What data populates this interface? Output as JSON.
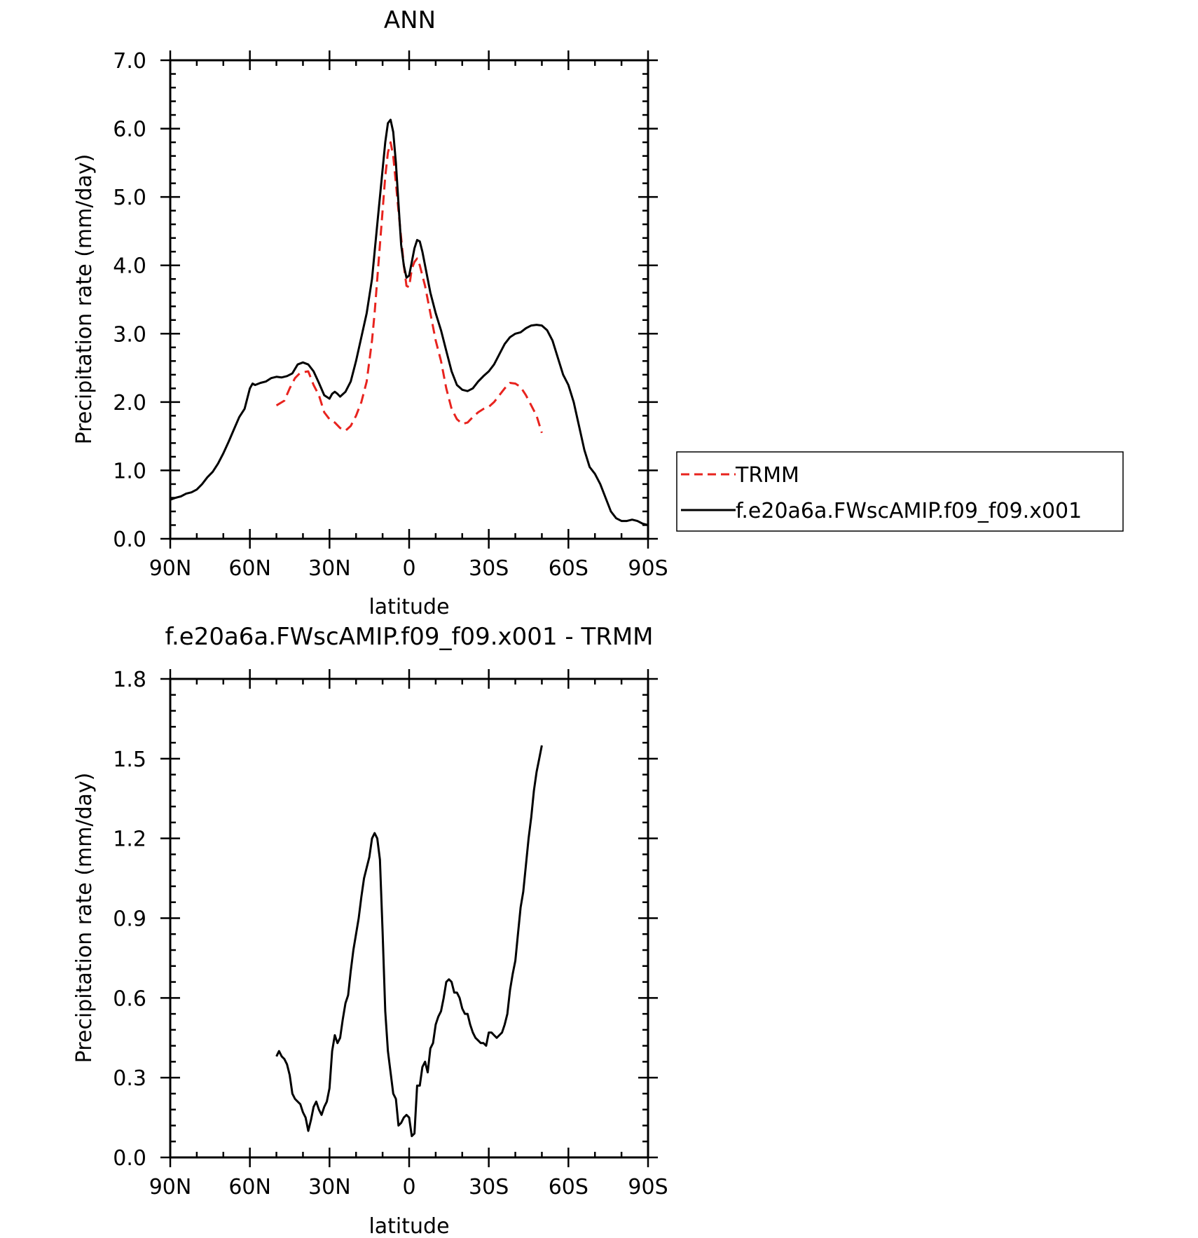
{
  "colors": {
    "trmm": "#e8231e",
    "model": "#000000"
  },
  "chart_data": [
    {
      "type": "line",
      "title": "ANN",
      "xlabel": "latitude",
      "ylabel": "Precipitation rate (mm/day)",
      "xlim": [
        90,
        -90
      ],
      "ylim": [
        0,
        7
      ],
      "x_ticks": [
        90,
        60,
        30,
        0,
        -30,
        -60,
        -90
      ],
      "x_tick_labels": [
        "90N",
        "60N",
        "30N",
        "0",
        "30S",
        "60S",
        "90S"
      ],
      "y_ticks": [
        0,
        1,
        2,
        3,
        4,
        5,
        6,
        7
      ],
      "y_tick_labels": [
        "0.0",
        "1.0",
        "2.0",
        "3.0",
        "4.0",
        "5.0",
        "6.0",
        "7.0"
      ],
      "legend_position": "right",
      "series": [
        {
          "name": "TRMM",
          "style": "dashed",
          "color": "#e8231e",
          "x": [
            50,
            47,
            45,
            43,
            41,
            38,
            36,
            34,
            32,
            30,
            28,
            26,
            24,
            22,
            20,
            18,
            16,
            14,
            13,
            12,
            11,
            10,
            9,
            8,
            7,
            6,
            5,
            4,
            3,
            2,
            1,
            0,
            -1,
            -2,
            -3,
            -4,
            -5,
            -6,
            -8,
            -10,
            -12,
            -14,
            -16,
            -18,
            -20,
            -22,
            -24,
            -26,
            -28,
            -30,
            -32,
            -34,
            -36,
            -38,
            -40,
            -42,
            -44,
            -46,
            -48,
            -50
          ],
          "values": [
            1.95,
            2.02,
            2.2,
            2.35,
            2.43,
            2.45,
            2.25,
            2.1,
            1.85,
            1.75,
            1.7,
            1.62,
            1.58,
            1.65,
            1.8,
            2.0,
            2.3,
            2.9,
            3.3,
            3.8,
            4.3,
            4.8,
            5.3,
            5.65,
            5.8,
            5.6,
            5.2,
            4.8,
            4.4,
            4.0,
            3.7,
            3.68,
            3.95,
            4.05,
            4.1,
            4.0,
            3.85,
            3.7,
            3.3,
            2.9,
            2.6,
            2.2,
            1.9,
            1.75,
            1.68,
            1.7,
            1.78,
            1.85,
            1.9,
            1.93,
            2.0,
            2.1,
            2.2,
            2.28,
            2.27,
            2.22,
            2.1,
            1.95,
            1.8,
            1.55
          ]
        },
        {
          "name": "f.e20a6a.FWscAMIP.f09_f09.x001",
          "style": "solid",
          "color": "#000000",
          "x": [
            90,
            88,
            86,
            84,
            82,
            80,
            78,
            76,
            74,
            72,
            70,
            68,
            66,
            64,
            62,
            60,
            59,
            58,
            56,
            54,
            52,
            50,
            48,
            46,
            44,
            42,
            40,
            38,
            36,
            34,
            32,
            30,
            29,
            28,
            27,
            26,
            24,
            22,
            20,
            18,
            16,
            14,
            12,
            10,
            9,
            8,
            7,
            6,
            5,
            4,
            3,
            2,
            1,
            0,
            -1,
            -2,
            -3,
            -4,
            -5,
            -6,
            -8,
            -10,
            -12,
            -14,
            -16,
            -18,
            -20,
            -22,
            -24,
            -26,
            -28,
            -30,
            -32,
            -34,
            -36,
            -38,
            -40,
            -42,
            -44,
            -46,
            -48,
            -50,
            -52,
            -54,
            -56,
            -58,
            -60,
            -62,
            -64,
            -66,
            -68,
            -70,
            -72,
            -74,
            -76,
            -78,
            -80,
            -82,
            -84,
            -86,
            -88,
            -90
          ],
          "values": [
            0.57,
            0.6,
            0.62,
            0.66,
            0.68,
            0.72,
            0.8,
            0.9,
            0.98,
            1.1,
            1.25,
            1.42,
            1.6,
            1.78,
            1.9,
            2.2,
            2.27,
            2.25,
            2.28,
            2.3,
            2.35,
            2.37,
            2.36,
            2.38,
            2.42,
            2.55,
            2.58,
            2.55,
            2.45,
            2.28,
            2.1,
            2.05,
            2.12,
            2.15,
            2.12,
            2.08,
            2.15,
            2.3,
            2.6,
            2.95,
            3.3,
            3.8,
            4.6,
            5.4,
            5.8,
            6.08,
            6.13,
            5.95,
            5.5,
            4.9,
            4.3,
            4.0,
            3.82,
            3.85,
            4.05,
            4.25,
            4.37,
            4.35,
            4.2,
            4.0,
            3.6,
            3.3,
            3.05,
            2.75,
            2.45,
            2.25,
            2.18,
            2.16,
            2.2,
            2.3,
            2.38,
            2.45,
            2.55,
            2.7,
            2.85,
            2.95,
            3.0,
            3.02,
            3.08,
            3.12,
            3.13,
            3.12,
            3.05,
            2.9,
            2.65,
            2.4,
            2.25,
            2.0,
            1.65,
            1.3,
            1.05,
            0.95,
            0.8,
            0.6,
            0.4,
            0.3,
            0.26,
            0.26,
            0.28,
            0.26,
            0.22,
            0.2
          ]
        }
      ]
    },
    {
      "type": "line",
      "title": "f.e20a6a.FWscAMIP.f09_f09.x001 - TRMM",
      "xlabel": "latitude",
      "ylabel": "Precipitation rate (mm/day)",
      "xlim": [
        90,
        -90
      ],
      "ylim": [
        0,
        1.8
      ],
      "x_ticks": [
        90,
        60,
        30,
        0,
        -30,
        -60,
        -90
      ],
      "x_tick_labels": [
        "90N",
        "60N",
        "30N",
        "0",
        "30S",
        "60S",
        "90S"
      ],
      "y_ticks": [
        0,
        0.3,
        0.6,
        0.9,
        1.2,
        1.5,
        1.8
      ],
      "y_tick_labels": [
        "0.0",
        "0.3",
        "0.6",
        "0.9",
        "1.2",
        "1.5",
        "1.8"
      ],
      "series": [
        {
          "style": "solid",
          "color": "#000000",
          "x": [
            50,
            49,
            48,
            47,
            46,
            45,
            44,
            43,
            42,
            41,
            40,
            39,
            38,
            37,
            36,
            35,
            34,
            33,
            32,
            31,
            30,
            29,
            28,
            27,
            26,
            25,
            24,
            23,
            22,
            21,
            20,
            19,
            18,
            17,
            16,
            15,
            14,
            13,
            12,
            11,
            10,
            9,
            8,
            7,
            6,
            5,
            4,
            3,
            2,
            1,
            0,
            -1,
            -2,
            -3,
            -4,
            -5,
            -6,
            -7,
            -8,
            -9,
            -10,
            -11,
            -12,
            -13,
            -14,
            -15,
            -16,
            -17,
            -18,
            -19,
            -20,
            -21,
            -22,
            -23,
            -24,
            -25,
            -26,
            -27,
            -28,
            -29,
            -30,
            -31,
            -32,
            -33,
            -34,
            -35,
            -36,
            -37,
            -38,
            -39,
            -40,
            -41,
            -42,
            -43,
            -44,
            -45,
            -46,
            -47,
            -48,
            -49,
            -50
          ],
          "values": [
            0.38,
            0.4,
            0.38,
            0.37,
            0.35,
            0.31,
            0.24,
            0.22,
            0.21,
            0.2,
            0.17,
            0.15,
            0.1,
            0.14,
            0.19,
            0.21,
            0.18,
            0.16,
            0.19,
            0.21,
            0.26,
            0.4,
            0.46,
            0.43,
            0.45,
            0.52,
            0.58,
            0.61,
            0.7,
            0.78,
            0.84,
            0.9,
            0.98,
            1.05,
            1.09,
            1.13,
            1.2,
            1.22,
            1.2,
            1.12,
            0.85,
            0.55,
            0.4,
            0.32,
            0.24,
            0.22,
            0.12,
            0.13,
            0.15,
            0.16,
            0.15,
            0.08,
            0.09,
            0.27,
            0.27,
            0.34,
            0.36,
            0.32,
            0.41,
            0.43,
            0.5,
            0.53,
            0.55,
            0.6,
            0.66,
            0.67,
            0.66,
            0.62,
            0.62,
            0.6,
            0.56,
            0.54,
            0.54,
            0.5,
            0.47,
            0.45,
            0.44,
            0.43,
            0.43,
            0.42,
            0.47,
            0.47,
            0.46,
            0.45,
            0.46,
            0.47,
            0.5,
            0.54,
            0.63,
            0.69,
            0.74,
            0.84,
            0.94,
            1.0,
            1.1,
            1.2,
            1.28,
            1.38,
            1.45,
            1.5,
            1.55
          ]
        }
      ]
    }
  ]
}
